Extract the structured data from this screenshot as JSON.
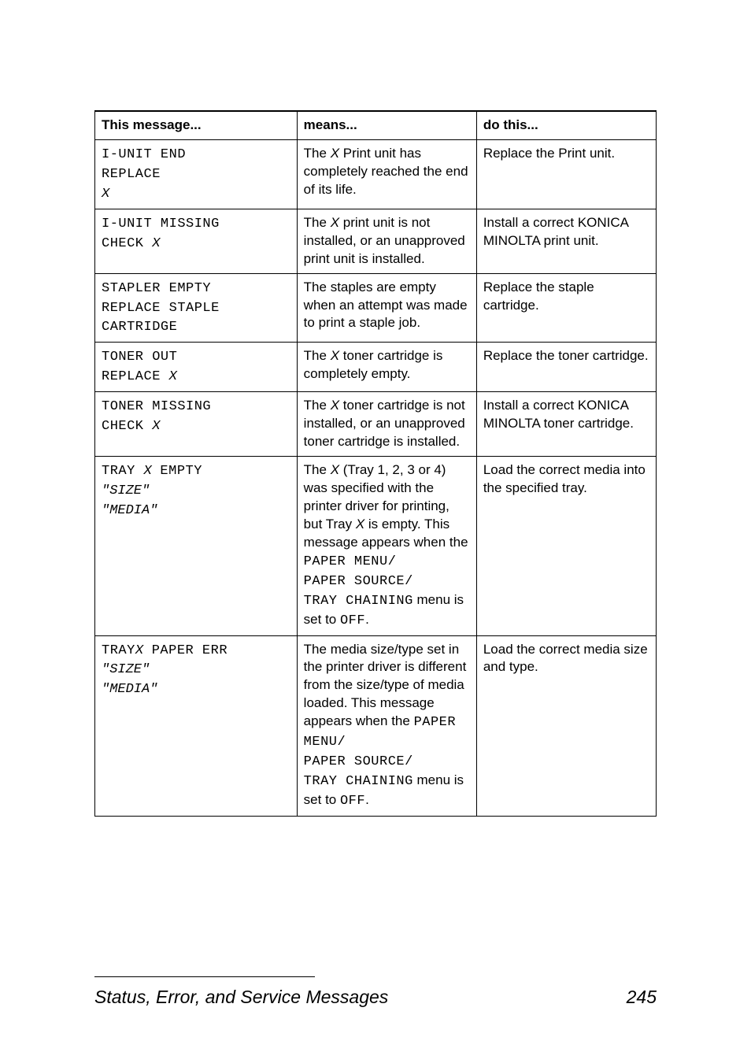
{
  "table": {
    "headers": [
      "This message...",
      "means...",
      "do this..."
    ],
    "rows": [
      {
        "msg_html": "<span class=\"mono\">I-UNIT END<br>REPLACE<br></span><span class=\"mono-it\">X</span>",
        "means_html": "The <span class=\"it\">X</span> Print unit has completely reached the end of its life.",
        "do_html": "Replace the Print unit."
      },
      {
        "msg_html": "<span class=\"mono\">I-UNIT MISSING<br>CHECK </span><span class=\"mono-it\">X</span>",
        "means_html": "The <span class=\"it\">X</span> print unit is not installed, or an unapproved print unit is installed.",
        "do_html": "Install a correct KONICA MINOLTA print unit."
      },
      {
        "msg_html": "<span class=\"mono\">STAPLER EMPTY<br>REPLACE STAPLE<br>CARTRIDGE</span>",
        "means_html": "The staples are empty when an attempt was made to print a staple job.",
        "do_html": "Replace the staple cartridge."
      },
      {
        "msg_html": "<span class=\"mono\">TONER OUT<br>REPLACE </span><span class=\"mono-it\">X</span>",
        "means_html": "The <span class=\"it\">X</span> toner cartridge is completely empty.",
        "do_html": "Replace the toner cartridge."
      },
      {
        "msg_html": "<span class=\"mono\">TONER MISSING<br>CHECK </span><span class=\"mono-it\">X</span>",
        "means_html": "The <span class=\"it\">X</span> toner cartridge is not installed, or an unapproved toner cartridge is installed.",
        "do_html": "Install a correct KONICA MINOLTA toner cartridge."
      },
      {
        "msg_html": "<span class=\"mono\">TRAY </span><span class=\"mono-it\">X</span><span class=\"mono\"> EMPTY<br></span><span class=\"mono-it\">\"SIZE\"</span><span class=\"mono\"><br></span><span class=\"mono-it\">\"MEDIA\"</span>",
        "means_html": "The <span class=\"it\">X</span> (Tray 1, 2, 3 or 4) was specified with the printer driver for printing, but Tray <span class=\"it\">X</span> is empty. This message appears when the <span class=\"mono\">PAPER MENU/<br>PAPER SOURCE/<br>TRAY CHAINING</span> menu is set to <span class=\"mono\">OFF</span>.",
        "do_html": "Load the correct media into the specified tray."
      },
      {
        "msg_html": "<span class=\"mono\">TRAY</span><span class=\"mono-it\">X</span><span class=\"mono\"> PAPER ERR<br></span><span class=\"mono-it\">\"SIZE\"</span><span class=\"mono\"><br></span><span class=\"mono-it\">\"MEDIA\"</span>",
        "means_html": "The media size/type set in the printer driver is different from the size/type of media loaded. This message appears when the <span class=\"mono\">PAPER MENU/<br>PAPER SOURCE/<br>TRAY CHAINING</span> menu is set to <span class=\"mono\">OFF</span>.",
        "do_html": "Load the correct media size and type."
      }
    ]
  },
  "footer": {
    "title": "Status, Error, and Service Messages",
    "page": "245"
  },
  "colors": {
    "text": "#000000",
    "background": "#ffffff",
    "border": "#000000"
  }
}
